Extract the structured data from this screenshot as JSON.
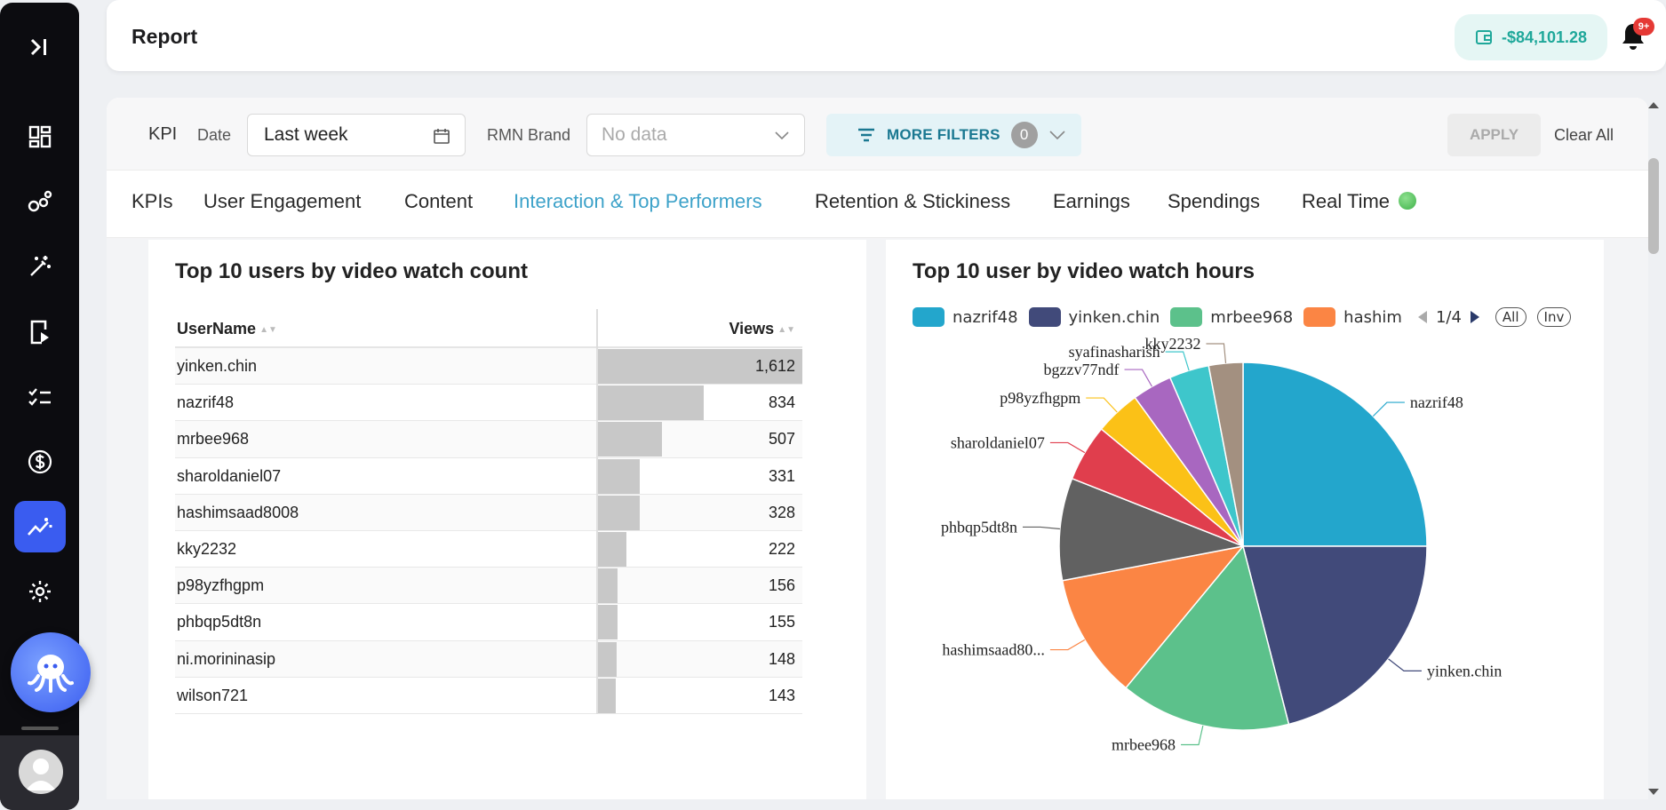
{
  "header": {
    "title": "Report",
    "balance": "-$84,101.28",
    "notifications_badge": "9+"
  },
  "filters": {
    "kpi_label": "KPI",
    "date_label": "Date",
    "date_value": "Last week",
    "rmn_label": "RMN Brand",
    "rmn_placeholder": "No data",
    "more_filters_label": "MORE FILTERS",
    "more_filters_count": "0",
    "apply_label": "APPLY",
    "clear_label": "Clear All"
  },
  "tabs": [
    {
      "label": "KPIs"
    },
    {
      "label": "User Engagement"
    },
    {
      "label": "Content"
    },
    {
      "label": "Interaction & Top Performers"
    },
    {
      "label": "Retention & Stickiness"
    },
    {
      "label": "Earnings"
    },
    {
      "label": "Spendings"
    },
    {
      "label": "Real Time"
    }
  ],
  "active_tab_index": 3,
  "colors": {
    "accent": "#3da2c9",
    "sidebar_active": "#3a5cf0",
    "balance_text": "#1fa89a"
  },
  "watch_count": {
    "title": "Top 10 users by video watch count",
    "col_user": "UserName",
    "col_views": "Views",
    "rows": [
      {
        "user": "yinken.chin",
        "views": "1,612",
        "value": 1612
      },
      {
        "user": "nazrif48",
        "views": "834",
        "value": 834
      },
      {
        "user": "mrbee968",
        "views": "507",
        "value": 507
      },
      {
        "user": "sharoldaniel07",
        "views": "331",
        "value": 331
      },
      {
        "user": "hashimsaad8008",
        "views": "328",
        "value": 328
      },
      {
        "user": "kky2232",
        "views": "222",
        "value": 222
      },
      {
        "user": "p98yzfhgpm",
        "views": "156",
        "value": 156
      },
      {
        "user": "phbqp5dt8n",
        "views": "155",
        "value": 155
      },
      {
        "user": "ni.morininasip",
        "views": "148",
        "value": 148
      },
      {
        "user": "wilson721",
        "views": "143",
        "value": 143
      }
    ]
  },
  "watch_hours": {
    "title": "Top 10 user by video watch hours",
    "legend": [
      {
        "name": "nazrif48",
        "color": "#23a6cc"
      },
      {
        "name": "yinken.chin",
        "color": "#414a7a"
      },
      {
        "name": "mrbee968",
        "color": "#5cc18b"
      },
      {
        "name": "hashim",
        "color": "#fb8544"
      }
    ],
    "pager": "1/4",
    "all_label": "All",
    "inv_label": "Inv"
  },
  "chart_data": {
    "type": "pie",
    "title": "Top 10 user by video watch hours",
    "slices": [
      {
        "label": "nazrif48",
        "value": 25,
        "color": "#23a6cc"
      },
      {
        "label": "yinken.chin",
        "value": 21,
        "color": "#414a7a"
      },
      {
        "label": "mrbee968",
        "value": 15,
        "color": "#5cc18b"
      },
      {
        "label": "hashimsaad80...",
        "value": 11,
        "color": "#fb8544"
      },
      {
        "label": "phbqp5dt8n",
        "value": 9,
        "color": "#616161"
      },
      {
        "label": "sharoldaniel07",
        "value": 5,
        "color": "#e03e4d"
      },
      {
        "label": "p98yzfhgpm",
        "value": 4,
        "color": "#fbc117"
      },
      {
        "label": "bgzzv77ndf",
        "value": 3.5,
        "color": "#a867c0"
      },
      {
        "label": "syafinasharish",
        "value": 3.5,
        "color": "#3ec6cb"
      },
      {
        "label": "kky2232",
        "value": 3,
        "color": "#a39080"
      }
    ]
  }
}
